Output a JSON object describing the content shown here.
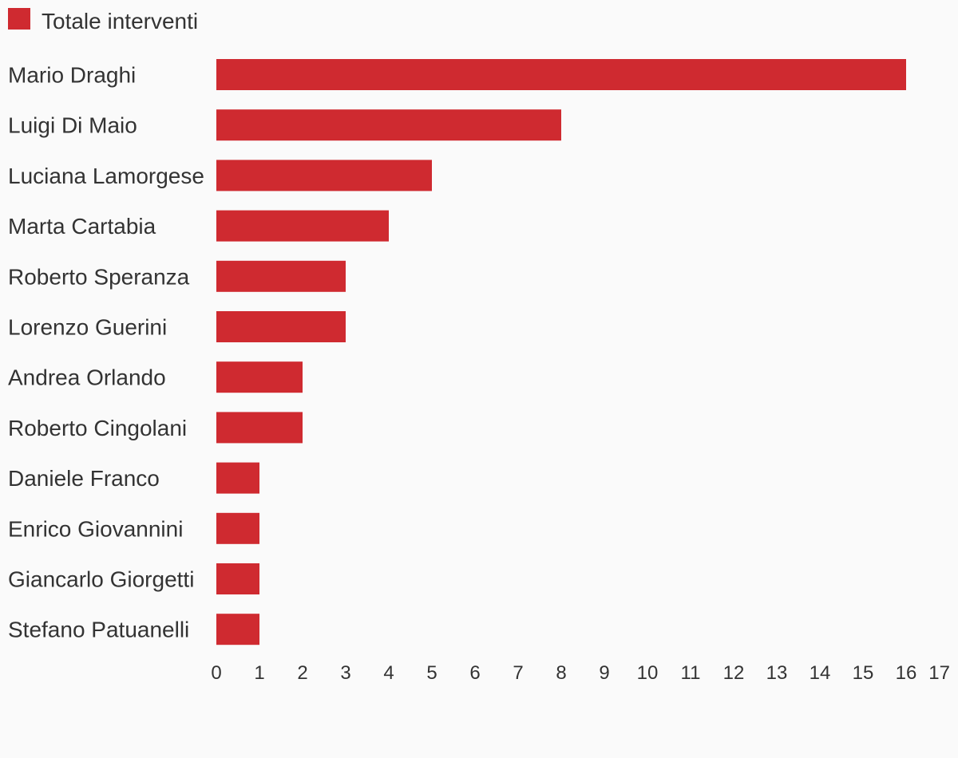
{
  "chart_data": {
    "type": "bar",
    "orientation": "horizontal",
    "categories": [
      "Mario Draghi",
      "Luigi Di Maio",
      "Luciana Lamorgese",
      "Marta Cartabia",
      "Roberto Speranza",
      "Lorenzo Guerini",
      "Andrea Orlando",
      "Roberto Cingolani",
      "Daniele Franco",
      "Enrico Giovannini",
      "Giancarlo Giorgetti",
      "Stefano Patuanelli"
    ],
    "series": [
      {
        "name": "Totale interventi",
        "values": [
          16,
          8,
          5,
          4,
          3,
          3,
          2,
          2,
          1,
          1,
          1,
          1
        ],
        "color": "#cf2a30"
      }
    ],
    "xlim": [
      0,
      17
    ],
    "xticks": [
      "0",
      "1",
      "2",
      "3",
      "4",
      "5",
      "6",
      "7",
      "8",
      "9",
      "10",
      "11",
      "12",
      "13",
      "14",
      "15",
      "16",
      "17"
    ],
    "grid": false,
    "legend": "top-left"
  }
}
